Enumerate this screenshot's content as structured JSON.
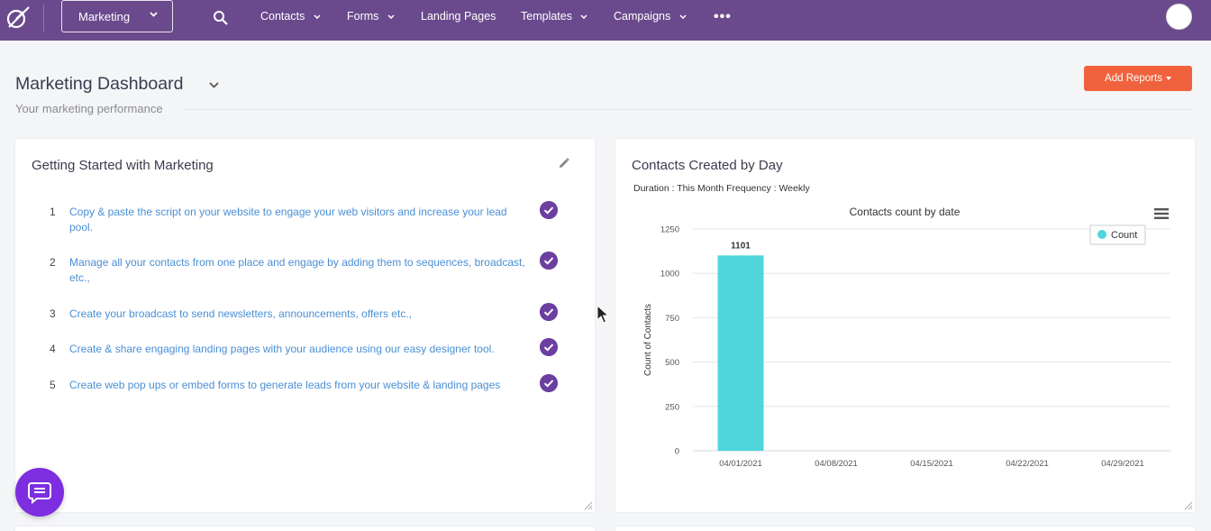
{
  "nav": {
    "workspace": "Marketing",
    "items": [
      {
        "label": "Contacts",
        "has_dropdown": true
      },
      {
        "label": "Forms",
        "has_dropdown": true
      },
      {
        "label": "Landing Pages",
        "has_dropdown": false
      },
      {
        "label": "Templates",
        "has_dropdown": true
      },
      {
        "label": "Campaigns",
        "has_dropdown": true
      }
    ],
    "more": "•••",
    "accent": "#6a4a8c"
  },
  "header": {
    "title": "Marketing Dashboard",
    "subtitle": "Your marketing performance",
    "add_reports_label": "Add Reports",
    "add_reports_color": "#f0623d"
  },
  "getting_started": {
    "title": "Getting Started with Marketing",
    "tasks": [
      {
        "num": "1",
        "text": "Copy & paste the script on your website to engage your web visitors and increase your lead pool.",
        "done": true
      },
      {
        "num": "2",
        "text": "Manage all your contacts from one place and engage by adding them to sequences, broadcast, etc.,",
        "done": true
      },
      {
        "num": "3",
        "text": "Create your broadcast to send newsletters, announcements, offers etc.,",
        "done": true
      },
      {
        "num": "4",
        "text": "Create & share engaging landing pages with your audience using our easy designer tool.",
        "done": true
      },
      {
        "num": "5",
        "text": "Create web pop ups or embed forms to generate leads from your website & landing pages",
        "done": true
      }
    ]
  },
  "contacts_card": {
    "title": "Contacts Created by Day",
    "duration": "Duration : This Month Frequency : Weekly"
  },
  "chart_data": {
    "type": "bar",
    "title": "Contacts count by date",
    "ylabel": "Count of Contacts",
    "xlabel": "",
    "categories": [
      "04/01/2021",
      "04/08/2021",
      "04/15/2021",
      "04/22/2021",
      "04/29/2021"
    ],
    "series": [
      {
        "name": "Count",
        "values": [
          1101,
          0,
          0,
          0,
          0
        ],
        "color": "#4fd6dc"
      }
    ],
    "data_labels": [
      "1101"
    ],
    "ylim": [
      0,
      1250
    ],
    "yticks": [
      "0",
      "250",
      "500",
      "750",
      "1000",
      "1250"
    ],
    "grid": true,
    "legend_position": "top-right"
  }
}
